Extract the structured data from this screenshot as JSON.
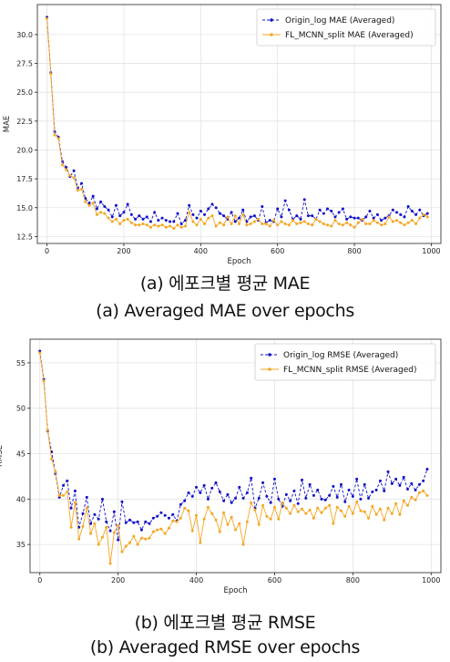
{
  "chart_data": [
    {
      "type": "line",
      "xlabel": "Epoch",
      "ylabel": "MAE",
      "x_ticks": [
        0,
        200,
        400,
        600,
        800,
        1000
      ],
      "y_ticks": [
        12.5,
        15.0,
        17.5,
        20.0,
        22.5,
        25.0,
        27.5,
        30.0
      ],
      "xlim": [
        -25,
        1025
      ],
      "ylim": [
        11.9,
        32.6
      ],
      "grid": true,
      "legend_position": "top-right",
      "caption_ko": "(a) 에포크별 평균 MAE",
      "caption_en": "(a) Averaged MAE over epochs",
      "x": [
        0,
        10,
        20,
        30,
        40,
        50,
        60,
        70,
        80,
        90,
        100,
        110,
        120,
        130,
        140,
        150,
        160,
        170,
        180,
        190,
        200,
        210,
        220,
        230,
        240,
        250,
        260,
        270,
        280,
        290,
        300,
        310,
        320,
        330,
        340,
        350,
        360,
        370,
        380,
        390,
        400,
        410,
        420,
        430,
        440,
        450,
        460,
        470,
        480,
        490,
        500,
        510,
        520,
        530,
        540,
        550,
        560,
        570,
        580,
        590,
        600,
        610,
        620,
        630,
        640,
        650,
        660,
        670,
        680,
        690,
        700,
        710,
        720,
        730,
        740,
        750,
        760,
        770,
        780,
        790,
        800,
        810,
        820,
        830,
        840,
        850,
        860,
        870,
        880,
        890,
        900,
        910,
        920,
        930,
        940,
        950,
        960,
        970,
        980,
        990
      ],
      "series": [
        {
          "name": "Origin_log MAE (Averaged)",
          "color": "#1010c8",
          "style": "dashed-dot-marker",
          "values": [
            31.5,
            26.7,
            21.6,
            21.1,
            19.0,
            18.5,
            17.7,
            18.2,
            16.7,
            17.1,
            15.8,
            15.4,
            16.0,
            14.9,
            15.5,
            15.1,
            14.8,
            14.2,
            15.2,
            14.3,
            14.6,
            15.3,
            14.4,
            14.0,
            14.3,
            14.0,
            14.2,
            13.8,
            14.6,
            13.9,
            14.1,
            13.9,
            13.8,
            13.8,
            14.5,
            13.6,
            13.9,
            15.2,
            14.4,
            14.1,
            14.7,
            14.4,
            14.9,
            15.3,
            15.0,
            14.5,
            14.3,
            14.0,
            14.6,
            13.8,
            14.1,
            14.8,
            13.8,
            14.2,
            14.3,
            13.9,
            15.1,
            13.7,
            13.9,
            13.8,
            14.9,
            14.2,
            15.6,
            14.8,
            14.0,
            14.3,
            14.0,
            15.7,
            14.3,
            14.3,
            14.0,
            14.8,
            14.5,
            14.9,
            14.7,
            14.2,
            14.6,
            14.9,
            14.0,
            14.2,
            14.1,
            14.1,
            13.9,
            14.2,
            14.7,
            14.1,
            14.4,
            13.9,
            14.1,
            14.3,
            14.8,
            14.6,
            14.4,
            14.2,
            15.1,
            14.7,
            14.4,
            14.8,
            14.3,
            14.5
          ]
        },
        {
          "name": "FL_MCNN_split MAE (Averaged)",
          "color": "#f5a623",
          "style": "solid-dot-marker",
          "values": [
            31.4,
            26.6,
            21.3,
            21.0,
            18.7,
            18.3,
            17.8,
            17.6,
            16.5,
            16.6,
            15.5,
            15.2,
            15.4,
            14.4,
            14.6,
            14.5,
            14.1,
            13.8,
            14.0,
            13.6,
            13.9,
            14.0,
            13.7,
            13.5,
            13.5,
            13.6,
            13.5,
            13.3,
            13.5,
            13.4,
            13.5,
            13.3,
            13.4,
            13.2,
            13.5,
            13.3,
            13.4,
            14.6,
            13.8,
            13.5,
            14.0,
            13.6,
            14.1,
            14.3,
            13.4,
            13.7,
            13.5,
            14.2,
            13.6,
            14.3,
            13.6,
            14.4,
            13.5,
            13.6,
            13.8,
            14.0,
            13.6,
            13.6,
            13.4,
            13.9,
            13.5,
            13.8,
            13.6,
            13.5,
            13.9,
            13.6,
            13.7,
            13.8,
            13.6,
            13.5,
            14.0,
            13.8,
            13.6,
            13.5,
            13.4,
            13.9,
            13.6,
            13.5,
            13.7,
            13.5,
            13.3,
            13.7,
            14.0,
            13.6,
            13.6,
            13.9,
            13.7,
            13.5,
            13.6,
            14.2,
            13.8,
            13.9,
            13.7,
            13.5,
            13.7,
            13.9,
            13.6,
            14.1,
            14.4,
            14.2
          ]
        }
      ]
    },
    {
      "type": "line",
      "xlabel": "Epoch",
      "ylabel": "RMSE",
      "x_ticks": [
        0,
        200,
        400,
        600,
        800,
        1000
      ],
      "y_ticks": [
        35,
        40,
        45,
        50,
        55
      ],
      "xlim": [
        -25,
        1025
      ],
      "ylim": [
        31.9,
        57.6
      ],
      "grid": true,
      "legend_position": "top-right",
      "caption_ko": "(b) 에포크별 평균 RMSE",
      "caption_en": "(b) Averaged RMSE over epochs",
      "x": [
        0,
        10,
        20,
        30,
        40,
        50,
        60,
        70,
        80,
        90,
        100,
        110,
        120,
        130,
        140,
        150,
        160,
        170,
        180,
        190,
        200,
        210,
        220,
        230,
        240,
        250,
        260,
        270,
        280,
        290,
        300,
        310,
        320,
        330,
        340,
        350,
        360,
        370,
        380,
        390,
        400,
        410,
        420,
        430,
        440,
        450,
        460,
        470,
        480,
        490,
        500,
        510,
        520,
        530,
        540,
        550,
        560,
        570,
        580,
        590,
        600,
        610,
        620,
        630,
        640,
        650,
        660,
        670,
        680,
        690,
        700,
        710,
        720,
        730,
        740,
        750,
        760,
        770,
        780,
        790,
        800,
        810,
        820,
        830,
        840,
        850,
        860,
        870,
        880,
        890,
        900,
        910,
        920,
        930,
        940,
        950,
        960,
        970,
        980,
        990
      ],
      "series": [
        {
          "name": "Origin_log RMSE (Averaged)",
          "color": "#1010c8",
          "style": "dashed-dot-marker",
          "values": [
            56.3,
            53.2,
            47.5,
            45.2,
            42.8,
            40.2,
            41.5,
            42.0,
            39.0,
            40.9,
            36.9,
            38.4,
            40.2,
            37.3,
            38.3,
            37.8,
            40.0,
            37.5,
            36.5,
            38.6,
            35.5,
            39.7,
            37.4,
            37.7,
            37.4,
            37.5,
            36.6,
            37.5,
            37.3,
            37.9,
            38.1,
            38.5,
            38.2,
            37.9,
            38.3,
            37.6,
            39.4,
            39.8,
            40.7,
            40.3,
            41.3,
            40.7,
            41.5,
            40.0,
            41.2,
            41.8,
            40.8,
            39.8,
            40.5,
            39.6,
            40.1,
            41.3,
            40.1,
            40.7,
            42.3,
            39.0,
            40.1,
            41.8,
            40.3,
            39.6,
            42.2,
            40.0,
            39.2,
            40.5,
            39.8,
            40.9,
            39.5,
            42.1,
            40.1,
            41.6,
            40.4,
            41.0,
            40.0,
            39.9,
            40.4,
            41.4,
            40.2,
            41.6,
            39.7,
            41.0,
            40.3,
            42.2,
            40.0,
            41.6,
            40.1,
            40.8,
            41.0,
            42.0,
            40.9,
            43.0,
            41.7,
            42.2,
            41.5,
            42.4,
            41.1,
            41.7,
            41.0,
            41.6,
            42.0,
            43.3
          ]
        },
        {
          "name": "FL_MCNN_split RMSE (Averaged)",
          "color": "#f5a623",
          "style": "solid-dot-marker",
          "values": [
            56.1,
            53.0,
            47.6,
            44.4,
            43.0,
            40.4,
            40.4,
            40.8,
            36.9,
            39.6,
            35.6,
            37.0,
            39.0,
            36.2,
            37.3,
            35.0,
            35.8,
            36.9,
            32.9,
            36.3,
            37.1,
            34.2,
            34.8,
            35.2,
            35.9,
            35.0,
            35.7,
            35.6,
            35.7,
            36.4,
            36.6,
            36.7,
            36.2,
            36.8,
            37.6,
            37.5,
            37.9,
            39.0,
            38.7,
            36.5,
            38.2,
            35.2,
            37.8,
            39.1,
            38.4,
            37.7,
            36.4,
            38.5,
            37.2,
            38.0,
            36.6,
            37.3,
            35.0,
            37.5,
            39.6,
            38.8,
            37.2,
            39.3,
            38.1,
            37.8,
            39.1,
            37.8,
            39.6,
            39.0,
            38.4,
            39.3,
            38.6,
            38.9,
            38.4,
            38.8,
            37.9,
            39.0,
            38.5,
            39.0,
            39.3,
            37.3,
            39.1,
            38.7,
            38.1,
            39.2,
            38.4,
            39.7,
            38.7,
            38.6,
            37.9,
            39.2,
            38.3,
            38.9,
            37.7,
            39.0,
            38.4,
            39.5,
            38.3,
            39.8,
            39.3,
            40.2,
            39.9,
            40.7,
            40.9,
            40.4
          ]
        }
      ]
    }
  ]
}
